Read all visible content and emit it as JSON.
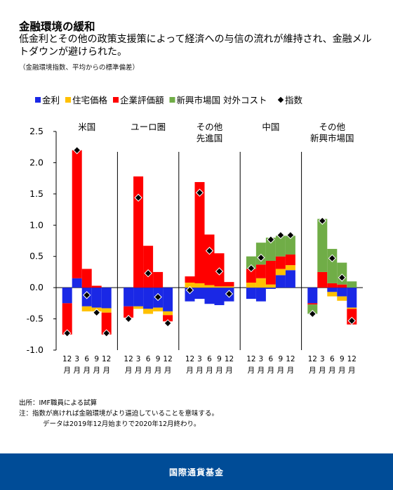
{
  "title": "金融環境の緩和",
  "subtitle": "低金利とその他の政策支援策によって経済への与信の流れが維持され、金融メルトダウンが避けられた。",
  "unit_note": "（金融環境指数、平均からの標準偏差）",
  "source_lines": [
    "出所：IMF職員による試算",
    "注：指数が高ければ金融環境がより逼迫していることを意味する。",
    "データは2019年12月始まりで2020年12月終わり。"
  ],
  "footer": "国際通貨基金",
  "colors": {
    "interest": "#1a28e6",
    "housing": "#ffc000",
    "corporate": "#ff0000",
    "emfx": "#70ad47",
    "index": "#000000"
  },
  "chart_data": {
    "type": "bar",
    "stacked": true,
    "ylim": [
      -1.0,
      2.5
    ],
    "yticks": [
      "2.5",
      "2.0",
      "1.5",
      "1.0",
      "0.5",
      "0.0",
      "-0.5",
      "-1.0"
    ],
    "grid": false,
    "legend_position": "top",
    "legend": [
      {
        "key": "interest",
        "label": "金利"
      },
      {
        "key": "housing",
        "label": "住宅価格"
      },
      {
        "key": "corporate",
        "label": "企業評価額"
      },
      {
        "key": "emfx",
        "label": "新興市場国 対外コスト"
      },
      {
        "key": "index",
        "label": "指数",
        "marker": "diamond"
      }
    ],
    "month_labels": [
      "12",
      "3",
      "6",
      "9",
      "12"
    ],
    "month_unit": "月",
    "groups": [
      {
        "label_lines": [
          "米国"
        ],
        "bars": [
          {
            "interest": -0.25,
            "housing": 0.0,
            "corporate": -0.5,
            "emfx": 0,
            "index": -0.73
          },
          {
            "interest": 0.15,
            "housing": 0.0,
            "corporate": 2.05,
            "emfx": 0,
            "index": 2.2
          },
          {
            "interest": -0.3,
            "housing": -0.08,
            "corporate": 0.3,
            "emfx": 0,
            "index": -0.12
          },
          {
            "interest": -0.32,
            "housing": -0.06,
            "corporate": 0.03,
            "emfx": 0,
            "index": -0.4
          },
          {
            "interest": -0.33,
            "housing": -0.07,
            "corporate": -0.35,
            "emfx": 0,
            "index": -0.73
          }
        ]
      },
      {
        "label_lines": [
          "ユーロ圏"
        ],
        "bars": [
          {
            "interest": -0.3,
            "housing": 0.0,
            "corporate": -0.18,
            "emfx": 0,
            "index": -0.5
          },
          {
            "interest": -0.3,
            "housing": -0.04,
            "corporate": 1.78,
            "emfx": 0,
            "index": 1.44
          },
          {
            "interest": -0.34,
            "housing": -0.08,
            "corporate": 0.67,
            "emfx": 0,
            "index": 0.23
          },
          {
            "interest": -0.32,
            "housing": -0.06,
            "corporate": 0.25,
            "emfx": 0,
            "index": -0.15
          },
          {
            "interest": -0.38,
            "housing": -0.06,
            "corporate": -0.1,
            "emfx": 0,
            "index": -0.57
          }
        ]
      },
      {
        "label_lines": [
          "その他",
          "先進国"
        ],
        "bars": [
          {
            "interest": -0.22,
            "housing": 0.08,
            "corporate": 0.1,
            "emfx": 0,
            "index": -0.04
          },
          {
            "interest": -0.18,
            "housing": 0.07,
            "corporate": 1.62,
            "emfx": 0,
            "index": 1.52
          },
          {
            "interest": -0.26,
            "housing": 0.04,
            "corporate": 0.81,
            "emfx": 0,
            "index": 0.59
          },
          {
            "interest": -0.28,
            "housing": 0.02,
            "corporate": 0.53,
            "emfx": 0,
            "index": 0.26
          },
          {
            "interest": -0.22,
            "housing": 0.02,
            "corporate": 0.07,
            "emfx": 0,
            "index": -0.1
          }
        ]
      },
      {
        "label_lines": [
          "中国"
        ],
        "bars": [
          {
            "interest": -0.18,
            "housing": 0.08,
            "corporate": 0.22,
            "emfx": 0.2,
            "index": 0.31
          },
          {
            "interest": -0.22,
            "housing": 0.15,
            "corporate": 0.22,
            "emfx": 0.35,
            "index": 0.48
          },
          {
            "interest": -0.02,
            "housing": 0.05,
            "corporate": 0.38,
            "emfx": 0.37,
            "index": 0.77
          },
          {
            "interest": 0.2,
            "housing": 0.1,
            "corporate": 0.2,
            "emfx": 0.33,
            "index": 0.84
          },
          {
            "interest": 0.28,
            "housing": 0.08,
            "corporate": 0.17,
            "emfx": 0.3,
            "index": 0.84
          }
        ]
      },
      {
        "label_lines": [
          "その他",
          "新興市場国"
        ],
        "bars": [
          {
            "interest": -0.25,
            "housing": 0.0,
            "corporate": -0.02,
            "emfx": -0.15,
            "index": -0.42
          },
          {
            "interest": 0.0,
            "housing": 0.0,
            "corporate": 0.25,
            "emfx": 0.85,
            "index": 1.07
          },
          {
            "interest": -0.07,
            "housing": -0.07,
            "corporate": 0.07,
            "emfx": 0.55,
            "index": 0.47
          },
          {
            "interest": -0.14,
            "housing": -0.07,
            "corporate": 0.05,
            "emfx": 0.35,
            "index": 0.16
          },
          {
            "interest": -0.32,
            "housing": -0.02,
            "corporate": -0.25,
            "emfx": 0.1,
            "index": -0.53
          }
        ]
      }
    ]
  }
}
